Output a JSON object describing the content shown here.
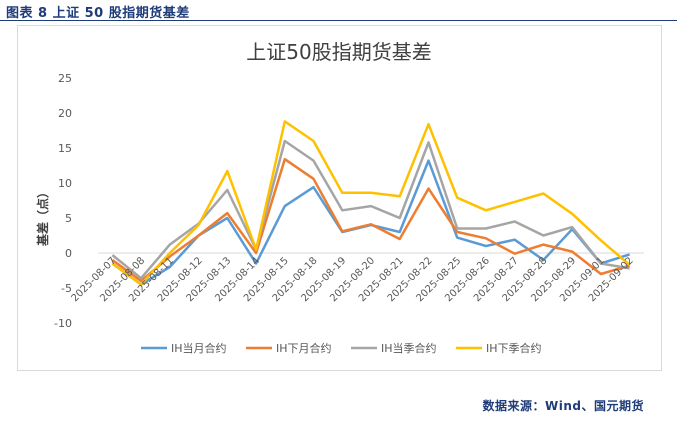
{
  "figure": {
    "caption": "图表 8  上证 50 股指期货基差",
    "source": "数据来源：Wind、国元期货"
  },
  "chart_data": {
    "type": "line",
    "title": "上证50股指期货基差",
    "ylabel": "基差（点）",
    "xlabel": "",
    "ylim": [
      -10,
      25
    ],
    "yticks": [
      25,
      20,
      15,
      10,
      5,
      0,
      -5,
      -10
    ],
    "grid": false,
    "legend": "bottom",
    "x": [
      "2025-08-07",
      "2025-08-08",
      "2025-08-11",
      "2025-08-12",
      "2025-08-13",
      "2025-08-14",
      "2025-08-15",
      "2025-08-18",
      "2025-08-19",
      "2025-08-20",
      "2025-08-21",
      "2025-08-22",
      "2025-08-25",
      "2025-08-26",
      "2025-08-27",
      "2025-08-28",
      "2025-08-29",
      "2025-09-01",
      "2025-09-02"
    ],
    "series": [
      {
        "name": "IH当月合约",
        "color": "#5b9bd5",
        "values": [
          -1.5,
          -4.5,
          -2.0,
          2.5,
          5.0,
          -1.5,
          6.7,
          9.4,
          3.0,
          4.0,
          3.0,
          13.2,
          2.2,
          1.0,
          1.9,
          -1.0,
          3.4,
          -1.5,
          -0.2
        ]
      },
      {
        "name": "IH下月合约",
        "color": "#ed7d31",
        "values": [
          -1.0,
          -4.0,
          -0.5,
          2.5,
          5.7,
          0.0,
          13.4,
          10.6,
          3.1,
          4.1,
          2.0,
          9.2,
          3.0,
          2.1,
          -0.1,
          1.2,
          0.2,
          -3.0,
          -1.8
        ]
      },
      {
        "name": "IH当季合约",
        "color": "#a5a5a5",
        "values": [
          -0.3,
          -3.6,
          1.2,
          4.2,
          9.0,
          0.5,
          16.0,
          13.2,
          6.1,
          6.7,
          5.0,
          15.8,
          3.5,
          3.5,
          4.5,
          2.5,
          3.7,
          -1.5,
          -2.2
        ]
      },
      {
        "name": "IH下季合约",
        "color": "#ffc000",
        "values": [
          -1.5,
          -4.5,
          0.0,
          4.0,
          11.7,
          0.5,
          18.8,
          16.0,
          8.6,
          8.6,
          8.1,
          18.4,
          7.9,
          6.1,
          7.3,
          8.5,
          5.6,
          1.8,
          -1.7
        ]
      }
    ]
  }
}
